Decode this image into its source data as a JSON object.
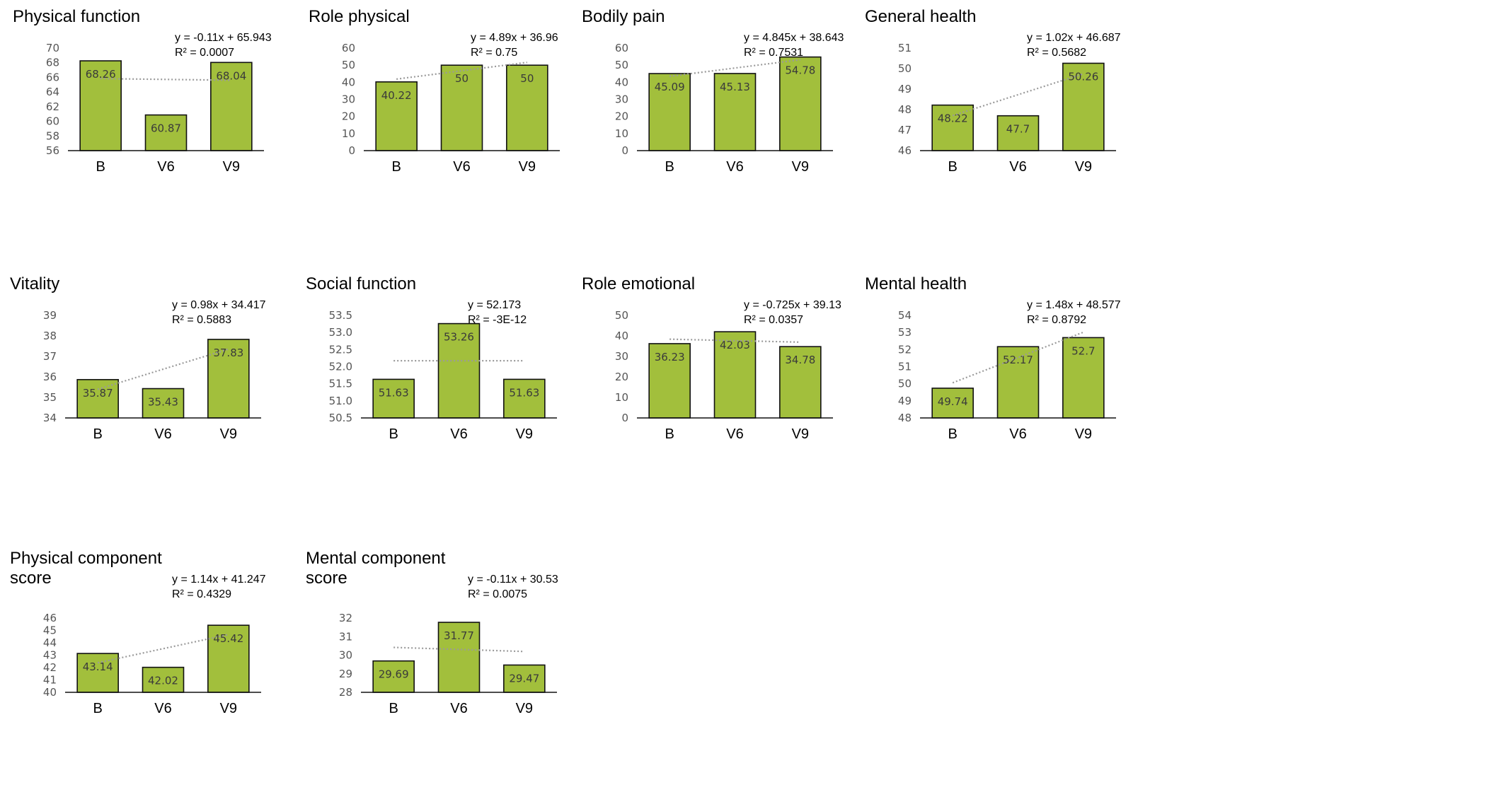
{
  "chart_data": [
    {
      "type": "bar",
      "title": [
        "Physical function"
      ],
      "categories": [
        "B",
        "V6",
        "V9"
      ],
      "values": [
        68.26,
        60.87,
        68.04
      ],
      "data_labels": [
        "68.26",
        "60.87",
        "68.04"
      ],
      "ylim": [
        56,
        70
      ],
      "yticks": [
        "56",
        "58",
        "60",
        "62",
        "64",
        "66",
        "68",
        "70"
      ],
      "trendline": {
        "equation": "y = -0.11x + 65.943",
        "r2": "R² = 0.0007",
        "slope": -0.11,
        "intercept": 65.943
      },
      "bar_color": "#a2bf3c"
    },
    {
      "type": "bar",
      "title": [
        "Role physical"
      ],
      "categories": [
        "B",
        "V6",
        "V9"
      ],
      "values": [
        40.22,
        50,
        50
      ],
      "data_labels": [
        "40.22",
        "50",
        "50"
      ],
      "ylim": [
        0,
        60
      ],
      "yticks": [
        "0",
        "10",
        "20",
        "30",
        "40",
        "50",
        "60"
      ],
      "trendline": {
        "equation": "y = 4.89x + 36.96",
        "r2": "R² = 0.75",
        "slope": 4.89,
        "intercept": 36.96
      },
      "bar_color": "#a2bf3c"
    },
    {
      "type": "bar",
      "title": [
        "Bodily pain"
      ],
      "categories": [
        "B",
        "V6",
        "V9"
      ],
      "values": [
        45.09,
        45.13,
        54.78
      ],
      "data_labels": [
        "45.09",
        "45.13",
        "54.78"
      ],
      "ylim": [
        0,
        60
      ],
      "yticks": [
        "0",
        "10",
        "20",
        "30",
        "40",
        "50",
        "60"
      ],
      "trendline": {
        "equation": "y = 4.845x + 38.643",
        "r2": "R² = 0.7531",
        "slope": 4.845,
        "intercept": 38.643
      },
      "bar_color": "#a2bf3c"
    },
    {
      "type": "bar",
      "title": [
        "General health"
      ],
      "categories": [
        "B",
        "V6",
        "V9"
      ],
      "values": [
        48.22,
        47.7,
        50.26
      ],
      "data_labels": [
        "48.22",
        "47.7",
        "50.26"
      ],
      "ylim": [
        46,
        51
      ],
      "yticks": [
        "46",
        "47",
        "48",
        "49",
        "50",
        "51"
      ],
      "trendline": {
        "equation": "y = 1.02x + 46.687",
        "r2": "R² = 0.5682",
        "slope": 1.02,
        "intercept": 46.687
      },
      "bar_color": "#a2bf3c"
    },
    {
      "type": "bar",
      "title": [
        "Vitality"
      ],
      "categories": [
        "B",
        "V6",
        "V9"
      ],
      "values": [
        35.87,
        35.43,
        37.83
      ],
      "data_labels": [
        "35.87",
        "35.43",
        "37.83"
      ],
      "ylim": [
        34,
        39
      ],
      "yticks": [
        "34",
        "35",
        "36",
        "37",
        "38",
        "39"
      ],
      "trendline": {
        "equation": "y = 0.98x + 34.417",
        "r2": "R² = 0.5883",
        "slope": 0.98,
        "intercept": 34.417
      },
      "bar_color": "#a2bf3c"
    },
    {
      "type": "bar",
      "title": [
        "Social function"
      ],
      "categories": [
        "B",
        "V6",
        "V9"
      ],
      "values": [
        51.63,
        53.26,
        51.63
      ],
      "data_labels": [
        "51.63",
        "53.26",
        "51.63"
      ],
      "ylim": [
        50.5,
        53.5
      ],
      "yticks": [
        "50.5",
        "51.0",
        "51.5",
        "52.0",
        "52.5",
        "53.0",
        "53.5"
      ],
      "trendline": {
        "equation": "y = 52.173",
        "r2": "R² = -3E-12",
        "slope": 0,
        "intercept": 52.173
      },
      "bar_color": "#a2bf3c"
    },
    {
      "type": "bar",
      "title": [
        "Role emotional"
      ],
      "categories": [
        "B",
        "V6",
        "V9"
      ],
      "values": [
        36.23,
        42.03,
        34.78
      ],
      "data_labels": [
        "36.23",
        "42.03",
        "34.78"
      ],
      "ylim": [
        0,
        50
      ],
      "yticks": [
        "0",
        "10",
        "20",
        "30",
        "40",
        "50"
      ],
      "trendline": {
        "equation": "y = -0.725x + 39.13",
        "r2": "R² = 0.0357",
        "slope": -0.725,
        "intercept": 39.13
      },
      "bar_color": "#a2bf3c"
    },
    {
      "type": "bar",
      "title": [
        "Mental health"
      ],
      "categories": [
        "B",
        "V6",
        "V9"
      ],
      "values": [
        49.74,
        52.17,
        52.7
      ],
      "data_labels": [
        "49.74",
        "52.17",
        "52.7"
      ],
      "ylim": [
        48,
        54
      ],
      "yticks": [
        "48",
        "49",
        "50",
        "51",
        "52",
        "53",
        "54"
      ],
      "trendline": {
        "equation": "y = 1.48x + 48.577",
        "r2": "R² = 0.8792",
        "slope": 1.48,
        "intercept": 48.577
      },
      "bar_color": "#a2bf3c"
    },
    {
      "type": "bar",
      "title": [
        "Physical component",
        "score"
      ],
      "categories": [
        "B",
        "V6",
        "V9"
      ],
      "values": [
        43.14,
        42.02,
        45.42
      ],
      "data_labels": [
        "43.14",
        "42.02",
        "45.42"
      ],
      "ylim": [
        40,
        46
      ],
      "yticks": [
        "40",
        "41",
        "42",
        "43",
        "44",
        "45",
        "46"
      ],
      "trendline": {
        "equation": "y = 1.14x + 41.247",
        "r2": "R² = 0.4329",
        "slope": 1.14,
        "intercept": 41.247
      },
      "bar_color": "#a2bf3c"
    },
    {
      "type": "bar",
      "title": [
        "Mental component",
        "score"
      ],
      "categories": [
        "B",
        "V6",
        "V9"
      ],
      "values": [
        29.69,
        31.77,
        29.47
      ],
      "data_labels": [
        "29.69",
        "31.77",
        "29.47"
      ],
      "ylim": [
        28,
        32
      ],
      "yticks": [
        "28",
        "29",
        "30",
        "31",
        "32"
      ],
      "trendline": {
        "equation": "y = -0.11x + 30.53",
        "r2": "R² = 0.0075",
        "slope": -0.11,
        "intercept": 30.53
      },
      "bar_color": "#a2bf3c"
    }
  ]
}
